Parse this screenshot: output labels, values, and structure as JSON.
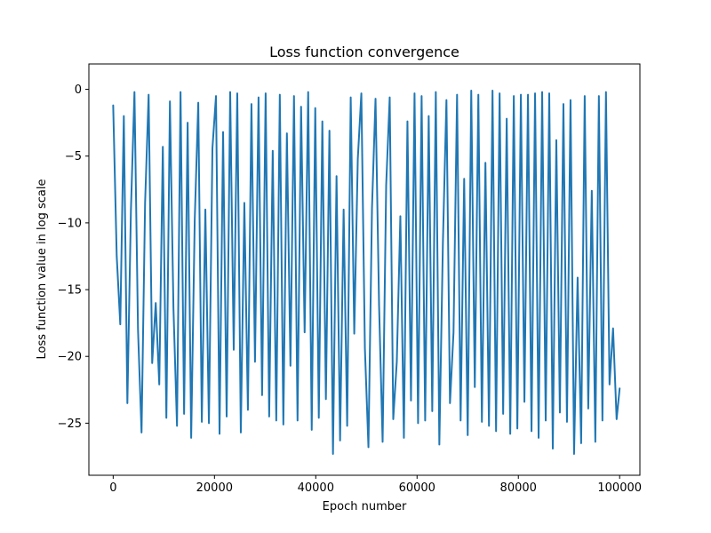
{
  "chart_data": {
    "type": "line",
    "title": "Loss function convergence",
    "xlabel": "Epoch number",
    "ylabel": "Loss function value in log scale",
    "xlim": [
      -4800,
      104000
    ],
    "ylim": [
      -28.9,
      1.9
    ],
    "xticks": [
      0,
      20000,
      40000,
      60000,
      80000,
      100000
    ],
    "xtick_labels": [
      "0",
      "20000",
      "40000",
      "60000",
      "80000",
      "100000"
    ],
    "yticks": [
      0,
      -5,
      -10,
      -15,
      -20,
      -25
    ],
    "ytick_labels": [
      "0",
      "−5",
      "−10",
      "−15",
      "−20",
      "−25"
    ],
    "grid": false,
    "legend": "none",
    "series": [
      {
        "color": "#1f77b4",
        "x": [
          0,
          700,
          1400,
          2100,
          2800,
          3500,
          4200,
          4900,
          5600,
          6300,
          7000,
          7700,
          8400,
          9100,
          9800,
          10500,
          11200,
          11900,
          12600,
          13300,
          14000,
          14700,
          15400,
          16100,
          16800,
          17500,
          18200,
          18900,
          19600,
          20300,
          21000,
          21700,
          22400,
          23100,
          23800,
          24500,
          25200,
          25900,
          26600,
          27300,
          28000,
          28700,
          29400,
          30100,
          30800,
          31500,
          32200,
          32900,
          33600,
          34300,
          35000,
          35700,
          36400,
          37100,
          37800,
          38500,
          39200,
          39900,
          40600,
          41300,
          42000,
          42700,
          43400,
          44100,
          44800,
          45500,
          46200,
          46900,
          47600,
          48300,
          49000,
          49700,
          50400,
          51100,
          51800,
          52500,
          53200,
          53900,
          54600,
          55300,
          56000,
          56700,
          57400,
          58100,
          58800,
          59500,
          60200,
          60900,
          61600,
          62300,
          63000,
          63700,
          64400,
          65100,
          65800,
          66500,
          67200,
          67900,
          68600,
          69300,
          70000,
          70700,
          71400,
          72100,
          72800,
          73500,
          74200,
          74900,
          75600,
          76300,
          77000,
          77700,
          78400,
          79100,
          79800,
          80500,
          81200,
          81900,
          82600,
          83300,
          84000,
          84700,
          85400,
          86100,
          86800,
          87500,
          88200,
          88900,
          89600,
          90300,
          91000,
          91700,
          92400,
          93100,
          93800,
          94500,
          95200,
          95900,
          96600,
          97300,
          98000,
          98700,
          99400,
          100000
        ],
        "y": [
          -1.2,
          -12.5,
          -17.6,
          -2.0,
          -23.5,
          -9.1,
          -0.2,
          -18.0,
          -25.7,
          -8.5,
          -0.4,
          -20.5,
          -16.0,
          -22.1,
          -4.3,
          -24.6,
          -0.9,
          -16.4,
          -25.2,
          -0.2,
          -24.3,
          -2.5,
          -26.1,
          -9.8,
          -1.0,
          -24.9,
          -9.0,
          -25.0,
          -4.4,
          -0.5,
          -25.8,
          -3.2,
          -24.5,
          -0.2,
          -19.5,
          -0.3,
          -25.7,
          -8.5,
          -24.0,
          -1.1,
          -20.4,
          -0.6,
          -22.9,
          -0.3,
          -24.5,
          -4.6,
          -24.8,
          -0.4,
          -25.1,
          -3.3,
          -20.7,
          -0.5,
          -24.8,
          -1.3,
          -18.2,
          -0.2,
          -25.5,
          -1.4,
          -24.6,
          -2.4,
          -23.2,
          -3.1,
          -27.3,
          -6.5,
          -26.3,
          -9.0,
          -25.2,
          -0.6,
          -18.3,
          -5.2,
          -0.3,
          -19.4,
          -26.8,
          -8.9,
          -0.7,
          -16.2,
          -26.4,
          -7.2,
          -0.6,
          -24.7,
          -20.4,
          -9.5,
          -26.1,
          -2.4,
          -23.3,
          -0.3,
          -25.0,
          -0.5,
          -24.8,
          -2.0,
          -24.1,
          -0.2,
          -26.6,
          -11.5,
          -0.8,
          -23.5,
          -18.2,
          -0.4,
          -24.8,
          -6.7,
          -25.9,
          -0.1,
          -22.3,
          -0.4,
          -24.9,
          -5.5,
          -25.2,
          -0.1,
          -25.6,
          -0.3,
          -24.3,
          -2.2,
          -25.8,
          -0.5,
          -25.4,
          -0.4,
          -23.4,
          -0.4,
          -25.6,
          -0.3,
          -26.1,
          -0.2,
          -24.8,
          -0.3,
          -26.9,
          -3.8,
          -24.2,
          -1.1,
          -24.9,
          -0.8,
          -27.3,
          -14.1,
          -26.5,
          -0.5,
          -23.9,
          -7.6,
          -26.4,
          -0.5,
          -24.8,
          -0.2,
          -22.1,
          -17.9,
          -24.7,
          -22.4
        ]
      }
    ]
  }
}
